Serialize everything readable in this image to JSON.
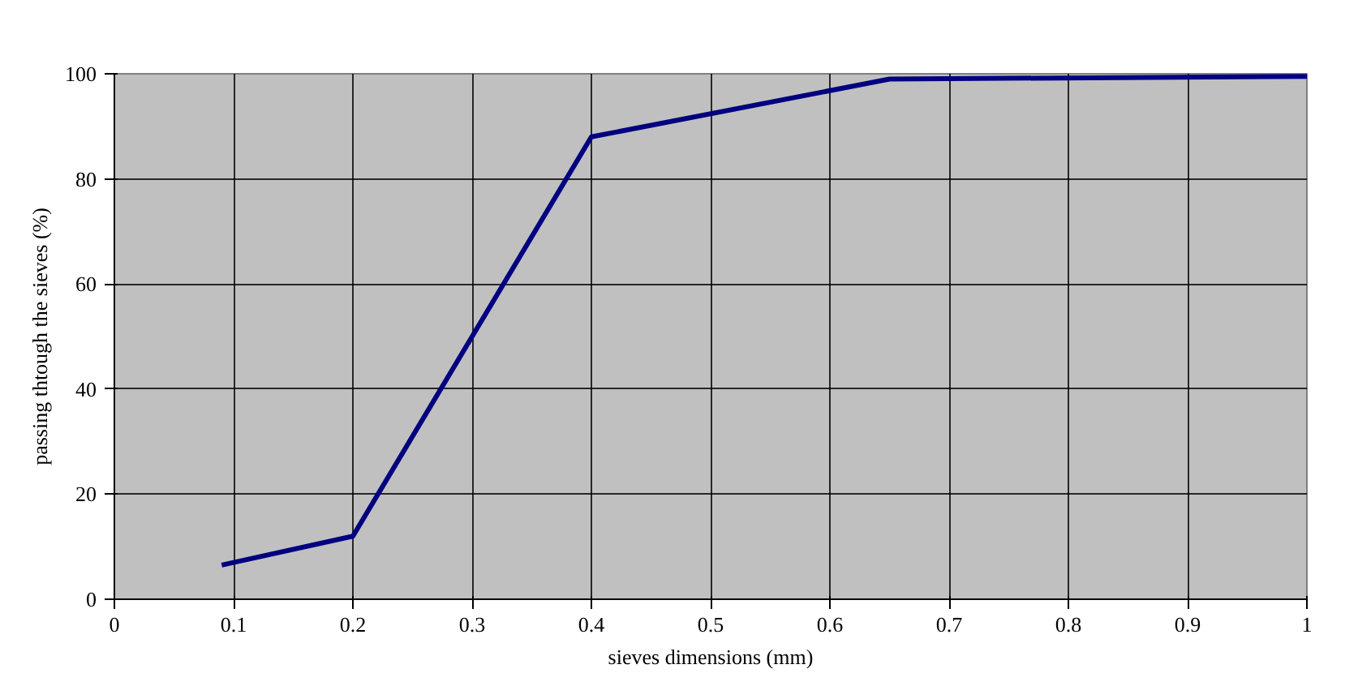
{
  "chart_data": {
    "type": "line",
    "xlabel": "sieves dimensions (mm)",
    "ylabel": "passing thtough the sieves (%)",
    "series": [
      {
        "color": "#000080",
        "x": [
          0.09,
          0.2,
          0.4,
          0.65,
          1.0
        ],
        "values": [
          6.5,
          12,
          88,
          99,
          99.5
        ]
      }
    ],
    "xlim": [
      0,
      1
    ],
    "xticks": [
      0,
      0.1,
      0.2,
      0.3,
      0.4,
      0.5,
      0.6,
      0.7,
      0.8,
      0.9,
      1
    ],
    "ylim": [
      0,
      100
    ],
    "yticks": [
      0,
      20,
      40,
      60,
      80,
      100
    ],
    "grid": true,
    "marker": "none",
    "line_style": "solid"
  }
}
